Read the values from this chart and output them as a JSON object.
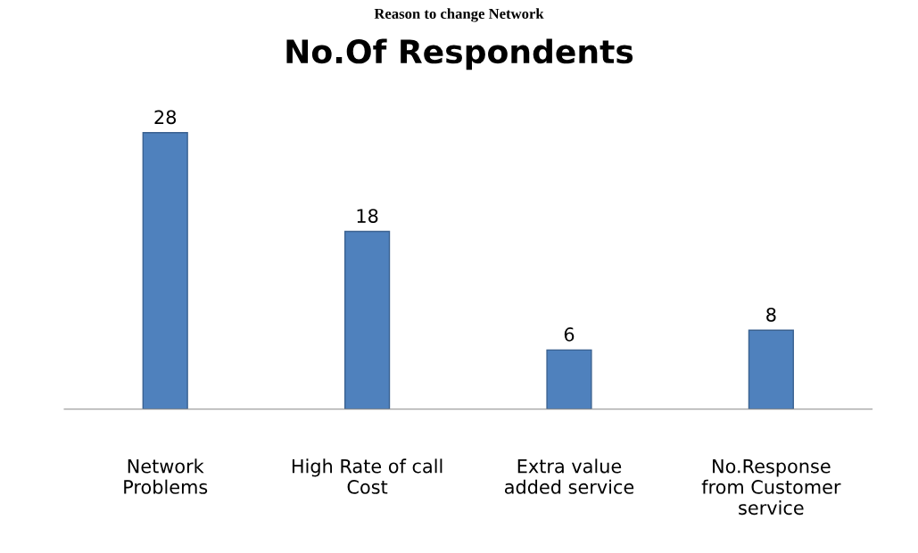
{
  "chart_data": {
    "type": "bar",
    "title": "No.Of Respondents",
    "annotations": [
      "Reason to change Network"
    ],
    "categories": [
      "Network\nProblems",
      "High Rate of call\nCost",
      "Extra value\nadded service",
      "No.Response\nfrom Customer\nservice"
    ],
    "values": [
      28,
      18,
      6,
      8
    ],
    "color": "#4f81bd",
    "data_labels": true,
    "grid": false,
    "legend": false
  }
}
